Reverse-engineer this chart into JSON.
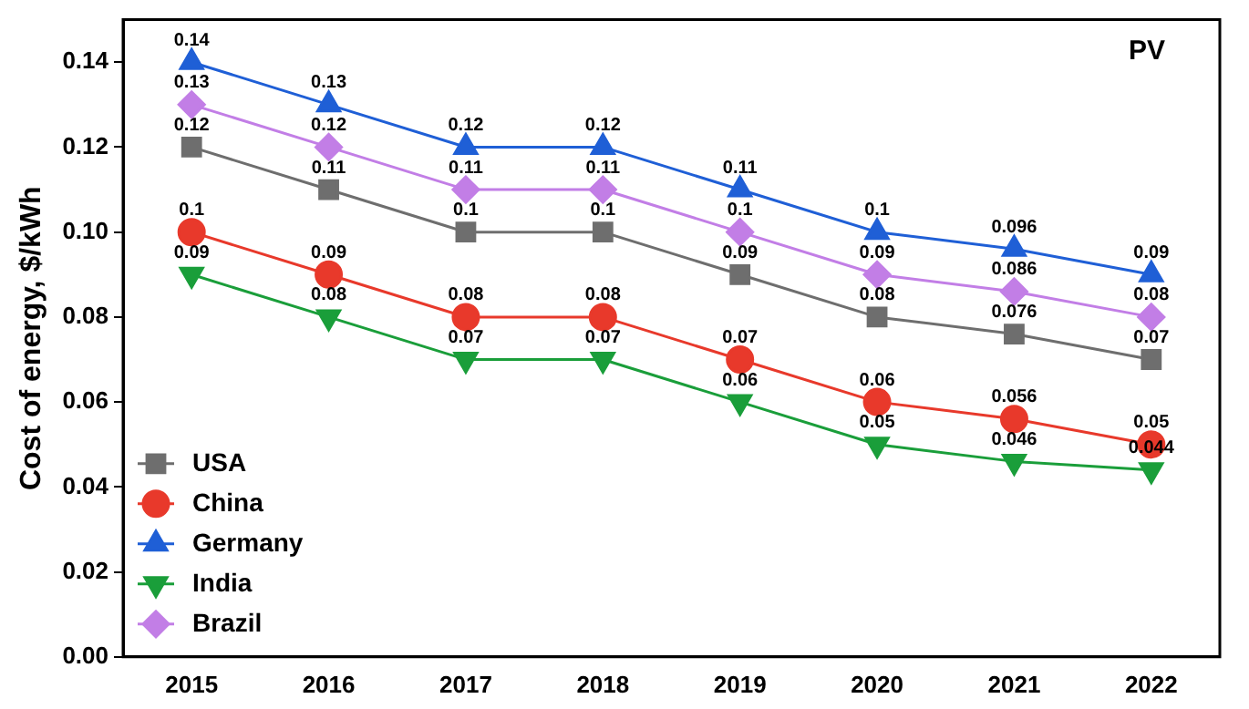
{
  "chart_data": {
    "type": "line",
    "ylabel": "Cost of energy, $/kWh",
    "annotations": [
      "PV"
    ],
    "categories": [
      "2015",
      "2016",
      "2017",
      "2018",
      "2019",
      "2020",
      "2021",
      "2022"
    ],
    "series": [
      {
        "name": "USA",
        "color": "#6e6e6e",
        "marker": "square",
        "values": [
          0.12,
          0.11,
          0.1,
          0.1,
          0.09,
          0.08,
          0.076,
          0.07
        ]
      },
      {
        "name": "China",
        "color": "#e8392b",
        "marker": "circle",
        "values": [
          0.1,
          0.09,
          0.08,
          0.08,
          0.07,
          0.06,
          0.056,
          0.05
        ]
      },
      {
        "name": "Germany",
        "color": "#1f5fd6",
        "marker": "triangle",
        "values": [
          0.14,
          0.13,
          0.12,
          0.12,
          0.11,
          0.1,
          0.096,
          0.09
        ]
      },
      {
        "name": "India",
        "color": "#1a9e3a",
        "marker": "triangle-down",
        "values": [
          0.09,
          0.08,
          0.07,
          0.07,
          0.06,
          0.05,
          0.046,
          0.044
        ]
      },
      {
        "name": "Brazil",
        "color": "#c27ee6",
        "marker": "diamond",
        "values": [
          0.13,
          0.12,
          0.11,
          0.11,
          0.1,
          0.09,
          0.086,
          0.08
        ]
      }
    ],
    "ylim": [
      0,
      0.15
    ],
    "yticks": [
      {
        "value": 0,
        "label": "0.00"
      },
      {
        "value": 0.02,
        "label": "0.02"
      },
      {
        "value": 0.04,
        "label": "0.04"
      },
      {
        "value": 0.06,
        "label": "0.06"
      },
      {
        "value": 0.08,
        "label": "0.08"
      },
      {
        "value": 0.1,
        "label": "0.10"
      },
      {
        "value": 0.12,
        "label": "0.12"
      },
      {
        "value": 0.14,
        "label": "0.14"
      }
    ],
    "data_labels": true,
    "grid": false,
    "legend": "bottom left",
    "line_style": "solid"
  }
}
